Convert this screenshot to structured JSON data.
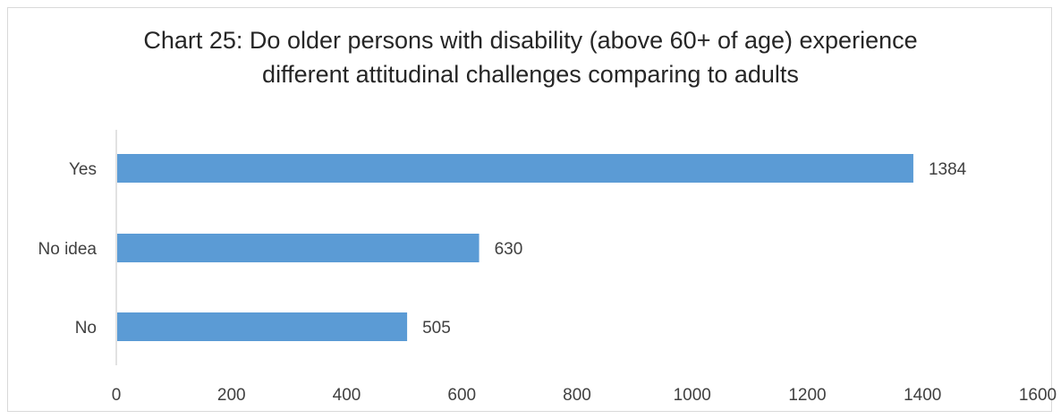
{
  "chart_data": {
    "type": "bar",
    "orientation": "horizontal",
    "title_lines": [
      "Chart 25: Do older persons with disability (above 60+ of age) experience",
      "different attitudinal challenges comparing to adults"
    ],
    "categories": [
      "Yes",
      "No idea",
      "No"
    ],
    "values": [
      1384,
      630,
      505
    ],
    "data_labels": [
      "1384",
      "630",
      "505"
    ],
    "xlim": [
      0,
      1600
    ],
    "xticks": [
      0,
      200,
      400,
      600,
      800,
      1000,
      1200,
      1400,
      1600
    ],
    "xtick_labels": [
      "0",
      "200",
      "400",
      "600",
      "800",
      "1000",
      "1200",
      "1400",
      "1600"
    ],
    "grid": false,
    "legend": "none",
    "bar_color": "#5b9bd5",
    "axis_color": "#d9d9d9"
  }
}
